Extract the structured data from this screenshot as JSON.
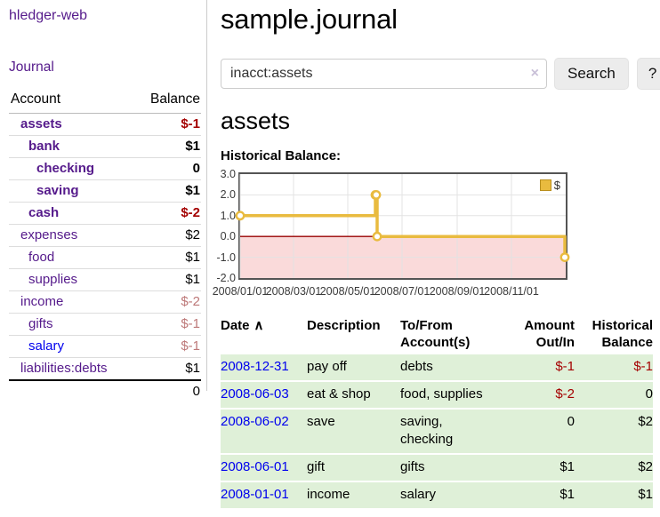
{
  "app": {
    "title": "hledger-web"
  },
  "sidebar": {
    "nav": {
      "journal": "Journal"
    },
    "table": {
      "headers": {
        "account": "Account",
        "balance": "Balance"
      },
      "rows": [
        {
          "account": "assets",
          "balance": "$-1",
          "indent": 1,
          "bold": true,
          "neg": "strong"
        },
        {
          "account": "bank",
          "balance": "$1",
          "indent": 2,
          "bold": true
        },
        {
          "account": "checking",
          "balance": "0",
          "indent": 3,
          "bold": true
        },
        {
          "account": "saving",
          "balance": "$1",
          "indent": 3,
          "bold": true
        },
        {
          "account": "cash",
          "balance": "$-2",
          "indent": 2,
          "bold": true,
          "neg": "strong"
        },
        {
          "account": "expenses",
          "balance": "$2",
          "indent": 1
        },
        {
          "account": "food",
          "balance": "$1",
          "indent": 2
        },
        {
          "account": "supplies",
          "balance": "$1",
          "indent": 2
        },
        {
          "account": "income",
          "balance": "$-2",
          "indent": 1,
          "neg": "soft"
        },
        {
          "account": "gifts",
          "balance": "$-1",
          "indent": 2,
          "neg": "soft"
        },
        {
          "account": "salary",
          "balance": "$-1",
          "indent": 2,
          "neg": "soft",
          "link": "blue"
        },
        {
          "account": "liabilities:debts",
          "balance": "$1",
          "indent": 1
        }
      ],
      "total": "0"
    }
  },
  "main": {
    "title": "sample.journal",
    "search": {
      "value": "inacct:assets",
      "clear_icon": "×",
      "button": "Search",
      "help_button": "?"
    },
    "account_heading": "assets",
    "chart_heading": "Historical Balance:"
  },
  "chart_data": {
    "type": "line",
    "title": "Historical Balance:",
    "step": true,
    "series": [
      {
        "name": "$",
        "color": "#e9bb3f",
        "points": [
          [
            "2008/01/01",
            1
          ],
          [
            "2008/06/01",
            2
          ],
          [
            "2008/06/02",
            2
          ],
          [
            "2008/06/03",
            0
          ],
          [
            "2008/12/31",
            -1
          ]
        ]
      }
    ],
    "x_ticks": [
      "2008/01/01",
      "2008/03/01",
      "2008/05/01",
      "2008/07/01",
      "2008/09/01",
      "2008/11/01"
    ],
    "y_ticks": [
      3.0,
      2.0,
      1.0,
      0.0,
      -1.0,
      -2.0
    ],
    "ylim": [
      -2,
      3
    ],
    "x_range_days": 366,
    "grid": true,
    "legend_position": "top-right",
    "grid_color": "#e3e3e3",
    "negative_fill": "#fadada",
    "zero_line_color": "#990000",
    "legend": [
      {
        "label": "$",
        "swatch": "#e9bb3f"
      }
    ]
  },
  "register": {
    "sort_icon": "∧",
    "headers": [
      "Date",
      "Description",
      "To/From Account(s)",
      "Amount Out/In",
      "Historical Balance"
    ],
    "rows": [
      {
        "date": "2008-12-31",
        "description": "pay off",
        "accounts": "debts",
        "amount": "$-1",
        "balance": "$-1",
        "amount_neg": true,
        "balance_neg": true
      },
      {
        "date": "2008-06-03",
        "description": "eat & shop",
        "accounts": "food, supplies",
        "amount": "$-2",
        "balance": "0",
        "amount_neg": true
      },
      {
        "date": "2008-06-02",
        "description": "save",
        "accounts": "saving, checking",
        "amount": "0",
        "balance": "$2"
      },
      {
        "date": "2008-06-01",
        "description": "gift",
        "accounts": "gifts",
        "amount": "$1",
        "balance": "$2"
      },
      {
        "date": "2008-01-01",
        "description": "income",
        "accounts": "salary",
        "amount": "$1",
        "balance": "$1"
      }
    ]
  }
}
